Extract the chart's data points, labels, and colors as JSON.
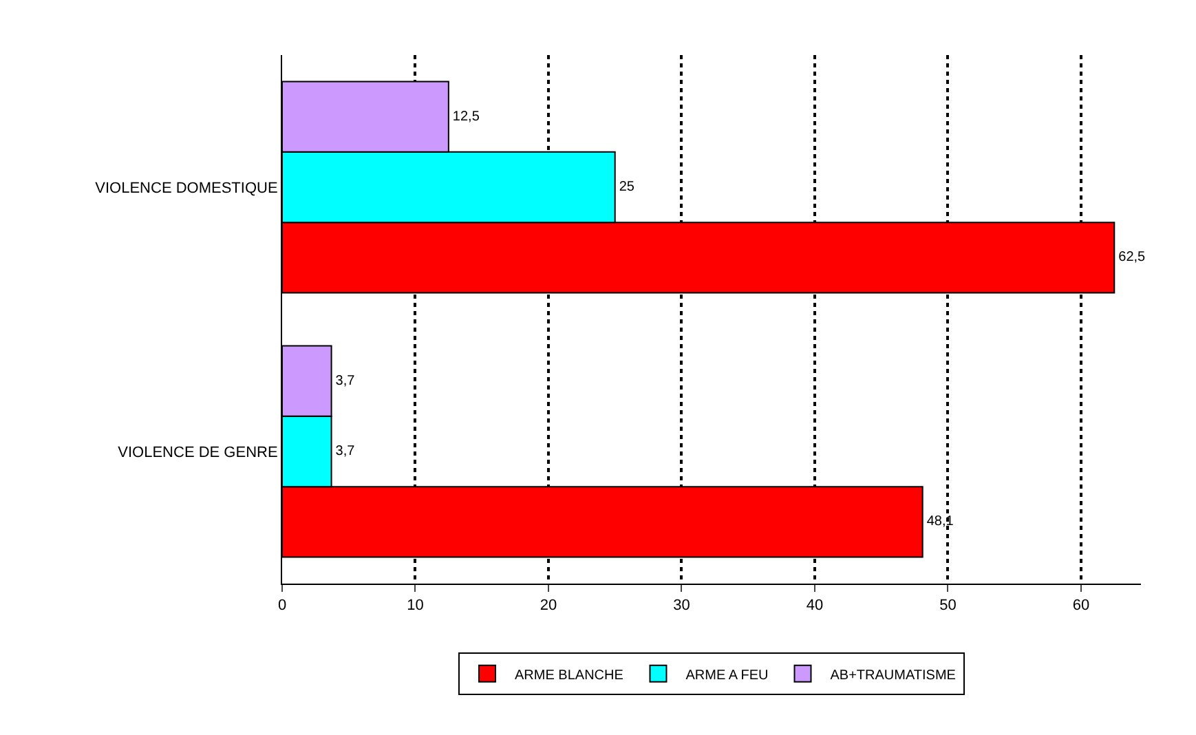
{
  "chart_data": {
    "type": "bar",
    "orientation": "horizontal",
    "categories": [
      "VIOLENCE DOMESTIQUE",
      "VIOLENCE DE GENRE"
    ],
    "series": [
      {
        "name": "ARME BLANCHE",
        "color": "#ff0000",
        "values": [
          62.5,
          48.1
        ],
        "value_labels": [
          "62,5",
          "48,1"
        ]
      },
      {
        "name": "ARME A FEU",
        "color": "#00ffff",
        "values": [
          25,
          3.7
        ],
        "value_labels": [
          "25",
          "3,7"
        ]
      },
      {
        "name": "AB+TRAUMATISME",
        "color": "#cc99ff",
        "values": [
          12.5,
          3.7
        ],
        "value_labels": [
          "12,5",
          "3,7"
        ]
      }
    ],
    "xlim": [
      0,
      64.5
    ],
    "xticks": [
      0,
      10,
      20,
      30,
      40,
      50,
      60
    ],
    "grid": "x",
    "legend": "bottom"
  }
}
